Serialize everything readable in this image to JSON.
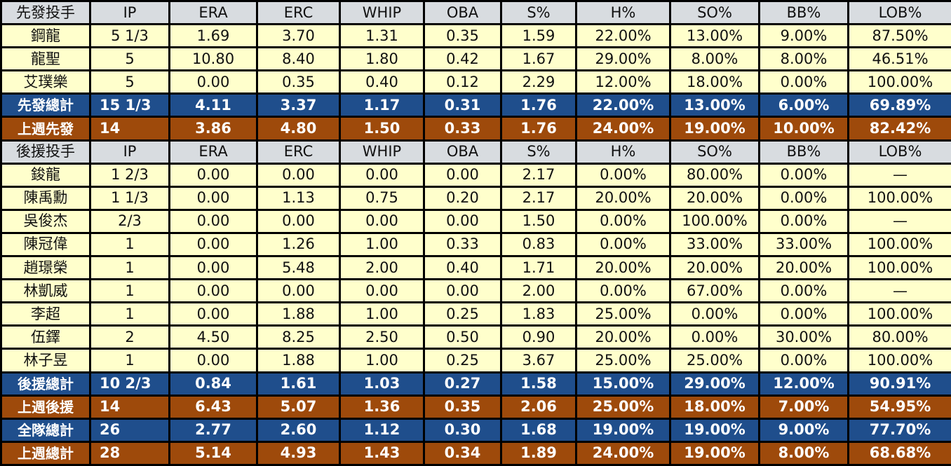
{
  "columns": [
    "IP",
    "ERA",
    "ERC",
    "WHIP",
    "OBA",
    "S%",
    "H%",
    "SO%",
    "BB%",
    "LOB%"
  ],
  "rows": [
    {
      "type": "header",
      "name": "先發投手",
      "values": [
        "IP",
        "ERA",
        "ERC",
        "WHIP",
        "OBA",
        "S%",
        "H%",
        "SO%",
        "BB%",
        "LOB%"
      ]
    },
    {
      "type": "pitcher",
      "name": "鋼龍",
      "values": [
        "5 1/3",
        "1.69",
        "3.70",
        "1.31",
        "0.35",
        "1.59",
        "22.00%",
        "13.00%",
        "9.00%",
        "87.50%"
      ]
    },
    {
      "type": "pitcher",
      "name": "龍聖",
      "values": [
        "5",
        "10.80",
        "8.40",
        "1.80",
        "0.42",
        "1.67",
        "29.00%",
        "8.00%",
        "8.00%",
        "46.51%"
      ]
    },
    {
      "type": "pitcher",
      "name": "艾璞樂",
      "values": [
        "5",
        "0.00",
        "0.35",
        "0.40",
        "0.12",
        "2.29",
        "12.00%",
        "18.00%",
        "0.00%",
        "100.00%"
      ]
    },
    {
      "type": "blue",
      "name": "先發總計",
      "values": [
        "15 1/3",
        "4.11",
        "3.37",
        "1.17",
        "0.31",
        "1.76",
        "22.00%",
        "13.00%",
        "6.00%",
        "69.89%"
      ]
    },
    {
      "type": "orange",
      "name": "上週先發",
      "values": [
        "14",
        "3.86",
        "4.80",
        "1.50",
        "0.33",
        "1.76",
        "24.00%",
        "19.00%",
        "10.00%",
        "82.42%"
      ]
    },
    {
      "type": "header",
      "name": "後援投手",
      "values": [
        "IP",
        "ERA",
        "ERC",
        "WHIP",
        "OBA",
        "S%",
        "H%",
        "SO%",
        "BB%",
        "LOB%"
      ]
    },
    {
      "type": "pitcher",
      "name": "鋑龍",
      "values": [
        "1 2/3",
        "0.00",
        "0.00",
        "0.00",
        "0.00",
        "2.17",
        "0.00%",
        "80.00%",
        "0.00%",
        "—"
      ]
    },
    {
      "type": "pitcher",
      "name": "陳禹勳",
      "values": [
        "1 1/3",
        "0.00",
        "1.13",
        "0.75",
        "0.20",
        "2.17",
        "20.00%",
        "20.00%",
        "0.00%",
        "100.00%"
      ]
    },
    {
      "type": "pitcher",
      "name": "吳俊杰",
      "values": [
        "2/3",
        "0.00",
        "0.00",
        "0.00",
        "0.00",
        "1.50",
        "0.00%",
        "100.00%",
        "0.00%",
        "—"
      ]
    },
    {
      "type": "pitcher",
      "name": "陳冠偉",
      "values": [
        "1",
        "0.00",
        "1.26",
        "1.00",
        "0.33",
        "0.83",
        "0.00%",
        "33.00%",
        "33.00%",
        "100.00%"
      ]
    },
    {
      "type": "pitcher",
      "name": "趙璟榮",
      "values": [
        "1",
        "0.00",
        "5.48",
        "2.00",
        "0.40",
        "1.71",
        "20.00%",
        "20.00%",
        "20.00%",
        "100.00%"
      ]
    },
    {
      "type": "pitcher",
      "name": "林凱威",
      "values": [
        "1",
        "0.00",
        "0.00",
        "0.00",
        "0.00",
        "2.00",
        "0.00%",
        "67.00%",
        "0.00%",
        "—"
      ]
    },
    {
      "type": "pitcher",
      "name": "李超",
      "values": [
        "1",
        "0.00",
        "1.88",
        "1.00",
        "0.25",
        "1.83",
        "25.00%",
        "0.00%",
        "0.00%",
        "100.00%"
      ]
    },
    {
      "type": "pitcher",
      "name": "伍鐸",
      "values": [
        "2",
        "4.50",
        "8.25",
        "2.50",
        "0.50",
        "0.90",
        "20.00%",
        "0.00%",
        "30.00%",
        "80.00%"
      ]
    },
    {
      "type": "pitcher",
      "name": "林子昱",
      "values": [
        "1",
        "0.00",
        "1.88",
        "1.00",
        "0.25",
        "3.67",
        "25.00%",
        "25.00%",
        "0.00%",
        "100.00%"
      ]
    },
    {
      "type": "blue",
      "name": "後援總計",
      "values": [
        "10 2/3",
        "0.84",
        "1.61",
        "1.03",
        "0.27",
        "1.58",
        "15.00%",
        "29.00%",
        "12.00%",
        "90.91%"
      ]
    },
    {
      "type": "orange",
      "name": "上週後援",
      "values": [
        "14",
        "6.43",
        "5.07",
        "1.36",
        "0.35",
        "2.06",
        "25.00%",
        "18.00%",
        "7.00%",
        "54.95%"
      ]
    },
    {
      "type": "blue",
      "name": "全隊總計",
      "values": [
        "26",
        "2.77",
        "2.60",
        "1.12",
        "0.30",
        "1.68",
        "19.00%",
        "19.00%",
        "9.00%",
        "77.70%"
      ]
    },
    {
      "type": "orange",
      "name": "上週總計",
      "values": [
        "28",
        "5.14",
        "4.93",
        "1.43",
        "0.34",
        "1.89",
        "24.00%",
        "19.00%",
        "8.00%",
        "68.68%"
      ]
    }
  ],
  "colors": {
    "header_bg": "#d8dce0",
    "pitcher_bg": "#ffffcc",
    "total_bg": "#1f4e8c",
    "last_week_bg": "#9e4a0b",
    "border": "#000000"
  }
}
